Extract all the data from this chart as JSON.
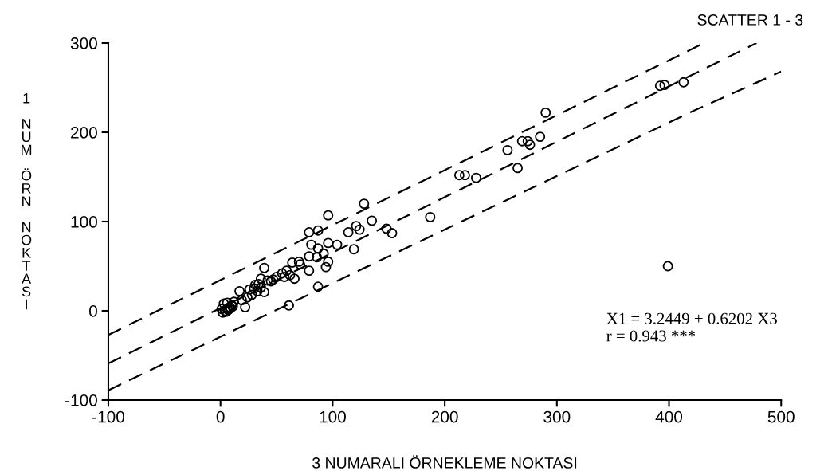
{
  "chart_data": {
    "type": "scatter",
    "title": "SCATTER 1 - 3",
    "xlabel": "3 NUMARALI ÖRNEKLEME NOKTASI",
    "ylabel": "1 NUM ÖRN NOKTASI",
    "annotations": [
      "X1 = 3.2449 + 0.6202 X3\nr = 0.943 ***"
    ],
    "xlim": [
      -100,
      500
    ],
    "ylim": [
      -100,
      300
    ],
    "xticks": [
      -100,
      0,
      100,
      200,
      300,
      400,
      500
    ],
    "yticks": [
      -100,
      0,
      100,
      200,
      300
    ],
    "grid": false,
    "legend": false,
    "series": [
      {
        "type": "scatter",
        "color": "#000000",
        "marker": "circle",
        "x": [
          396,
          392,
          413,
          290,
          256,
          269,
          276,
          285,
          274,
          265,
          213,
          218,
          228,
          187,
          148,
          153,
          399,
          96,
          79,
          87,
          128,
          135,
          121,
          124,
          114,
          119,
          81,
          87,
          96,
          104,
          92,
          79,
          86,
          96,
          94,
          79,
          71,
          64,
          59,
          66,
          39,
          57,
          50,
          45,
          36,
          31,
          33,
          26,
          39,
          87,
          61,
          17,
          22,
          19,
          24,
          2,
          4,
          6,
          8,
          10,
          3,
          5,
          7,
          9,
          11,
          1,
          6,
          12,
          28,
          30,
          34,
          36,
          42,
          47,
          55,
          62,
          70
        ],
        "values": [
          253,
          252,
          256,
          222,
          180,
          190,
          186,
          195,
          190,
          160,
          152,
          152,
          149,
          105,
          92,
          87,
          50,
          107,
          88,
          90,
          120,
          101,
          95,
          91,
          88,
          69,
          74,
          70,
          76,
          74,
          64,
          61,
          60,
          55,
          49,
          45,
          52,
          54,
          45,
          36,
          48,
          38,
          38,
          33,
          36,
          29,
          22,
          24,
          21,
          27,
          6,
          22,
          4,
          12,
          15,
          -2,
          0,
          2,
          4,
          6,
          8,
          -1,
          1,
          3,
          5,
          2,
          9,
          10,
          18,
          25,
          30,
          26,
          34,
          35,
          42,
          40,
          55
        ]
      },
      {
        "type": "line",
        "color": "#000000",
        "line_style": "dashed",
        "x": [
          -100,
          478
        ],
        "values": [
          -59,
          300
        ]
      },
      {
        "type": "line",
        "color": "#000000",
        "line_style": "dashed",
        "x": [
          -100,
          420,
          431
        ],
        "values": [
          -27,
          293,
          300
        ]
      },
      {
        "type": "line",
        "color": "#000000",
        "line_style": "dashed",
        "x": [
          -100,
          420,
          500
        ],
        "values": [
          -89,
          223,
          268
        ]
      }
    ]
  }
}
